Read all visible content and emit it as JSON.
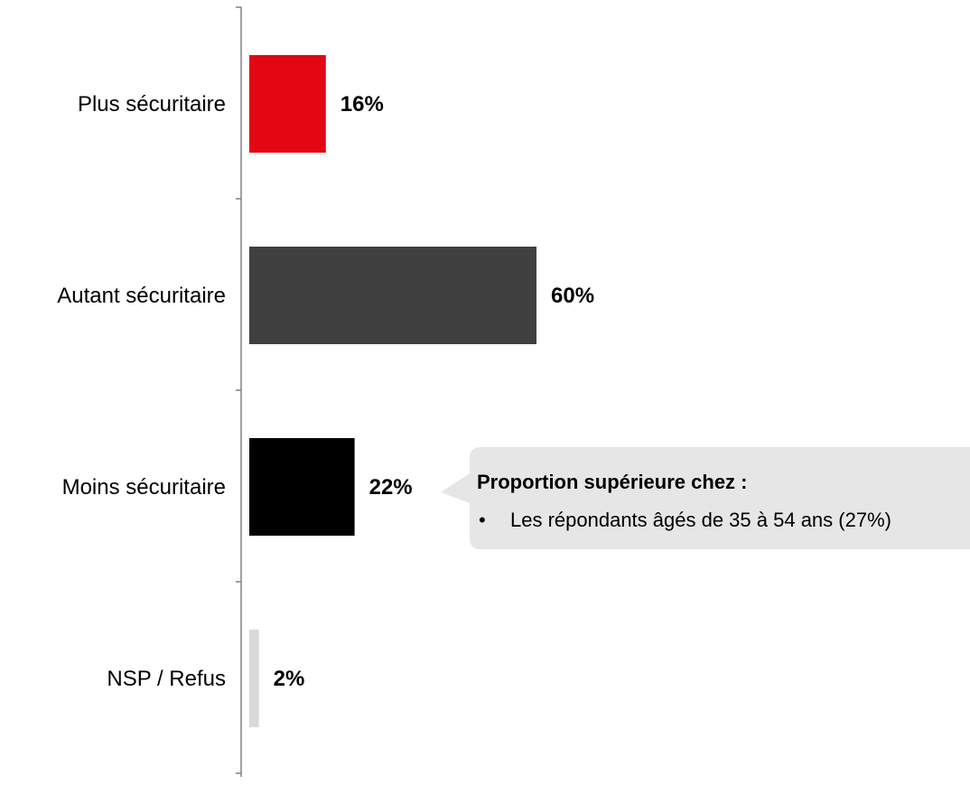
{
  "chart_data": {
    "type": "bar",
    "orientation": "horizontal",
    "categories": [
      "Plus sécuritaire",
      "Autant sécuritaire",
      "Moins sécuritaire",
      "NSP / Refus"
    ],
    "values": [
      16,
      60,
      22,
      2
    ],
    "value_labels": [
      "16%",
      "60%",
      "22%",
      "2%"
    ],
    "colors": [
      "#E30613",
      "#404040",
      "#000000",
      "#D9D9D9"
    ],
    "xlim": [
      0,
      100
    ],
    "grid": false,
    "legend": "none"
  },
  "callout": {
    "title": "Proportion supérieure chez :",
    "bullet": "•",
    "items": [
      "Les répondants âgés de 35 à 54 ans (27%)"
    ],
    "background": "#E6E6E6"
  }
}
